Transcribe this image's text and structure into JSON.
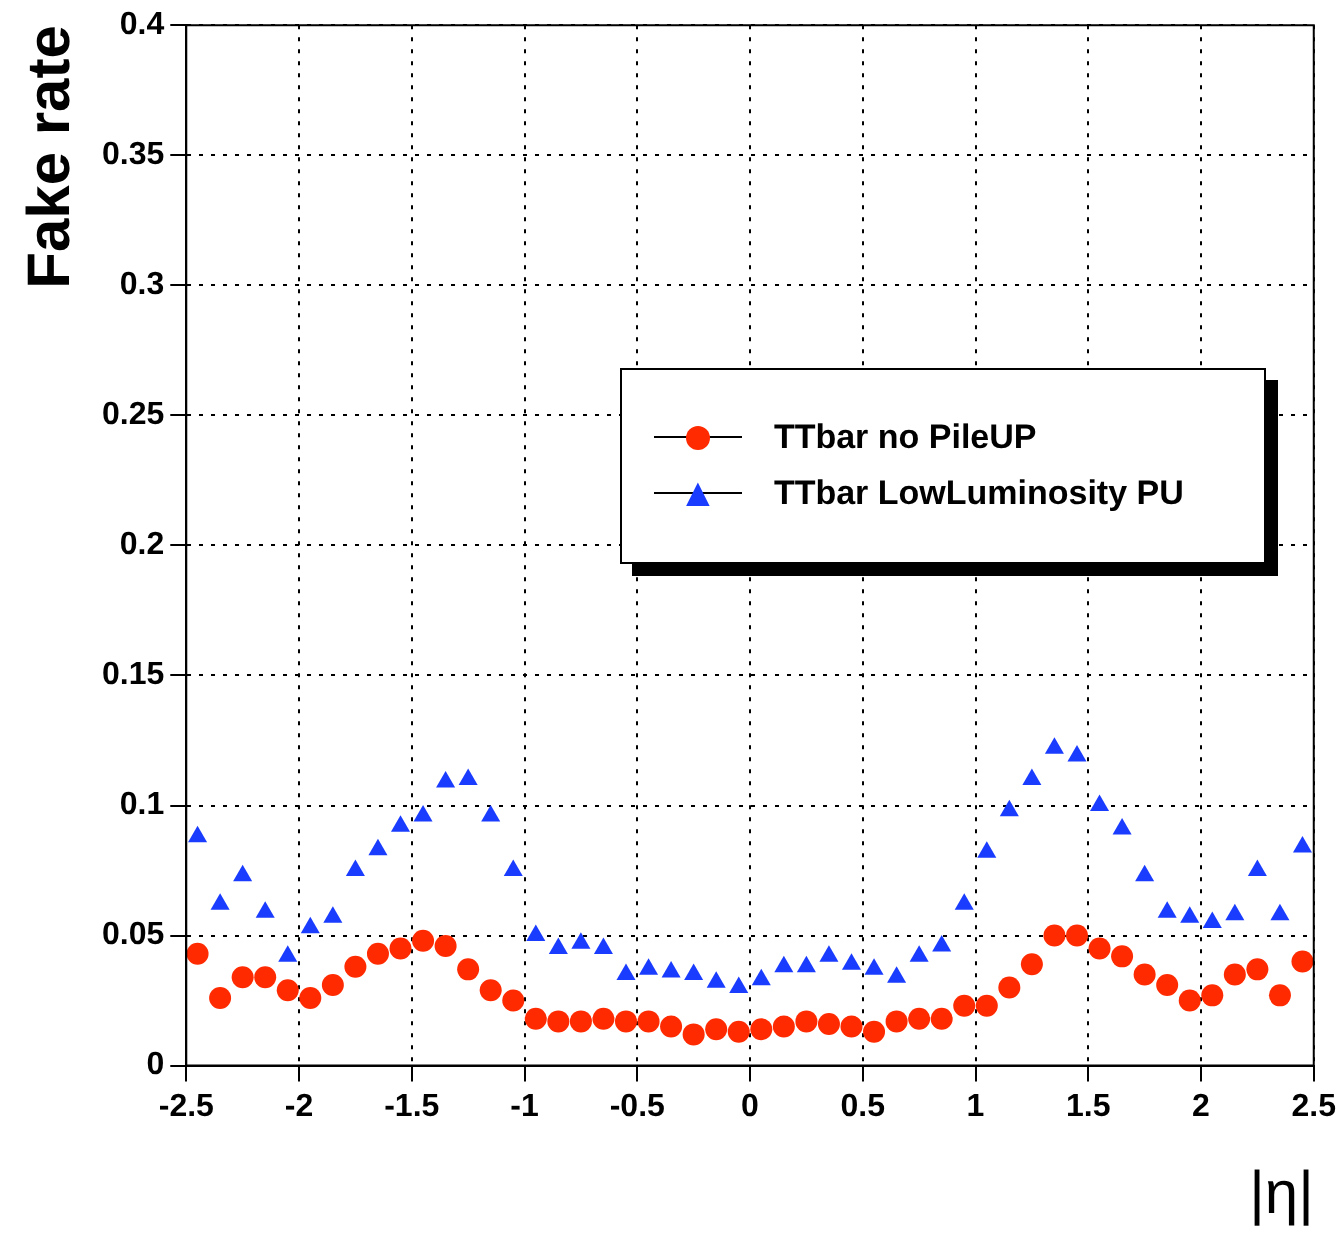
{
  "chart_data": {
    "type": "scatter",
    "xlabel": "|η|",
    "ylabel": "Fake rate",
    "x": [
      -2.45,
      -2.35,
      -2.25,
      -2.15,
      -2.05,
      -1.95,
      -1.85,
      -1.75,
      -1.65,
      -1.55,
      -1.45,
      -1.35,
      -1.25,
      -1.15,
      -1.05,
      -0.95,
      -0.85,
      -0.75,
      -0.65,
      -0.55,
      -0.45,
      -0.35,
      -0.25,
      -0.15,
      -0.05,
      0.05,
      0.15,
      0.25,
      0.35,
      0.45,
      0.55,
      0.65,
      0.75,
      0.85,
      0.95,
      1.05,
      1.15,
      1.25,
      1.35,
      1.45,
      1.55,
      1.65,
      1.75,
      1.85,
      1.95,
      2.05,
      2.15,
      2.25,
      2.35,
      2.45
    ],
    "series": [
      {
        "name": "TTbar no PileUP",
        "color": "#ff2a00",
        "marker": "circle",
        "values": [
          0.043,
          0.026,
          0.034,
          0.034,
          0.029,
          0.026,
          0.031,
          0.038,
          0.043,
          0.045,
          0.048,
          0.046,
          0.037,
          0.029,
          0.025,
          0.018,
          0.017,
          0.017,
          0.018,
          0.017,
          0.017,
          0.015,
          0.012,
          0.014,
          0.013,
          0.014,
          0.015,
          0.017,
          0.016,
          0.015,
          0.013,
          0.017,
          0.018,
          0.018,
          0.023,
          0.023,
          0.03,
          0.039,
          0.05,
          0.05,
          0.045,
          0.042,
          0.035,
          0.031,
          0.025,
          0.027,
          0.035,
          0.037,
          0.027,
          0.04
        ]
      },
      {
        "name": "TTbar LowLuminosity PU",
        "color": "#1a3cff",
        "marker": "triangle",
        "values": [
          0.088,
          0.062,
          0.073,
          0.059,
          0.042,
          0.053,
          0.057,
          0.075,
          0.083,
          0.092,
          0.096,
          0.109,
          0.11,
          0.096,
          0.075,
          0.05,
          0.045,
          0.047,
          0.045,
          0.035,
          0.037,
          0.036,
          0.035,
          0.032,
          0.03,
          0.033,
          0.038,
          0.038,
          0.042,
          0.039,
          0.037,
          0.034,
          0.042,
          0.046,
          0.062,
          0.082,
          0.098,
          0.11,
          0.122,
          0.119,
          0.1,
          0.091,
          0.073,
          0.059,
          0.057,
          0.055,
          0.058,
          0.075,
          0.058,
          0.084
        ]
      }
    ],
    "xlim": [
      -2.5,
      2.5
    ],
    "xticks": [
      -2.5,
      -2,
      -1.5,
      -1,
      -0.5,
      0,
      0.5,
      1,
      1.5,
      2,
      2.5
    ],
    "ylim": [
      0,
      0.4
    ],
    "yticks": [
      0,
      0.05,
      0.1,
      0.15,
      0.2,
      0.25,
      0.3,
      0.35,
      0.4
    ],
    "grid": true,
    "legend": "right"
  }
}
